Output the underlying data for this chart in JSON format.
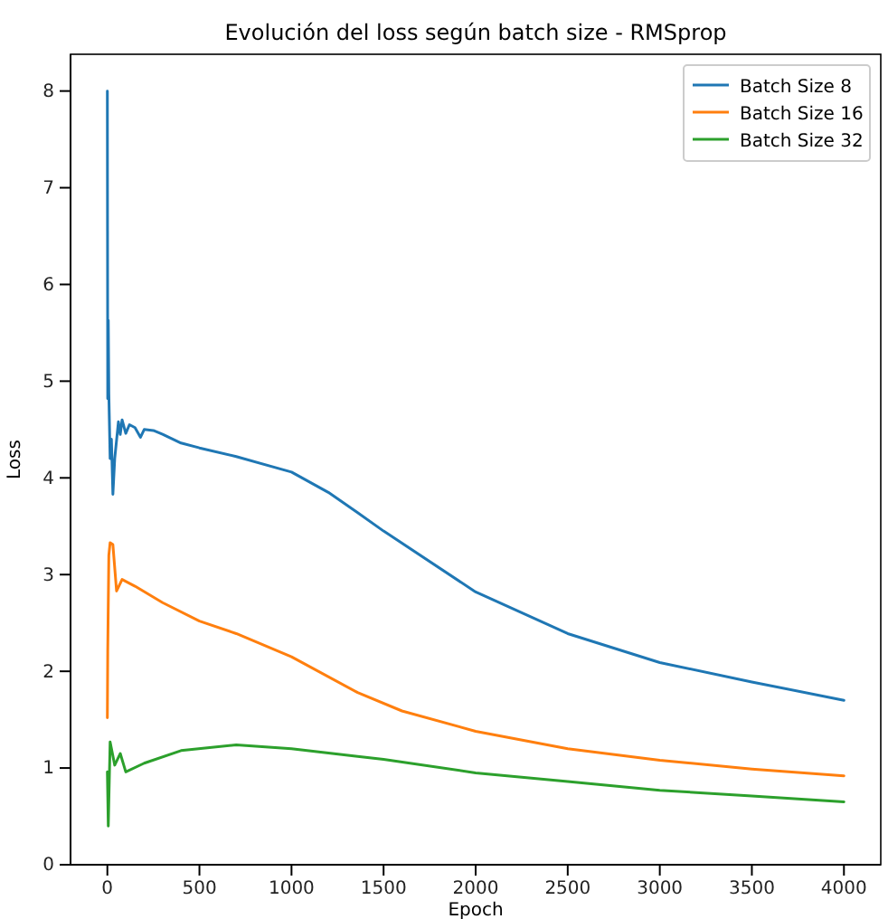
{
  "chart_data": {
    "type": "line",
    "title": "Evolución del loss según batch size - RMSprop",
    "xlabel": "Epoch",
    "ylabel": "Loss",
    "xlim": [
      -200,
      4200
    ],
    "xticks": [
      0,
      500,
      1000,
      1500,
      2000,
      2500,
      3000,
      3500,
      4000
    ],
    "ylim": [
      0,
      8.38
    ],
    "yticks": [
      0,
      1,
      2,
      3,
      4,
      5,
      6,
      7,
      8
    ],
    "grid": false,
    "legend": "top right",
    "marker": "none",
    "line_style": "solid",
    "series": [
      {
        "name": "Batch Size 8",
        "color": "#1f77b4",
        "x": [
          0,
          2,
          5,
          8,
          15,
          22,
          30,
          40,
          60,
          70,
          80,
          100,
          120,
          150,
          180,
          200,
          250,
          300,
          400,
          500,
          700,
          1000,
          1200,
          1359,
          1500,
          2000,
          2500,
          3000,
          3500,
          4000
        ],
        "values": [
          8.0,
          4.82,
          5.63,
          4.87,
          4.2,
          4.4,
          3.83,
          4.2,
          4.58,
          4.45,
          4.6,
          4.46,
          4.55,
          4.52,
          4.42,
          4.5,
          4.49,
          4.45,
          4.36,
          4.31,
          4.22,
          4.06,
          3.85,
          3.64,
          3.45,
          2.82,
          2.39,
          2.09,
          1.89,
          1.7
        ]
      },
      {
        "name": "Batch Size 16",
        "color": "#ff7f0e",
        "x": [
          0,
          2,
          8,
          15,
          30,
          50,
          80,
          150,
          300,
          500,
          700,
          1000,
          1359,
          1600,
          2000,
          2500,
          3000,
          3500,
          4000
        ],
        "values": [
          1.52,
          2.2,
          3.2,
          3.33,
          3.31,
          2.83,
          2.95,
          2.88,
          2.71,
          2.52,
          2.39,
          2.15,
          1.78,
          1.59,
          1.38,
          1.2,
          1.08,
          0.99,
          0.92
        ]
      },
      {
        "name": "Batch Size 32",
        "color": "#2ca02c",
        "x": [
          0,
          5,
          15,
          40,
          70,
          100,
          200,
          400,
          700,
          1000,
          1359,
          1500,
          2000,
          2500,
          3000,
          3500,
          4000
        ],
        "values": [
          0.96,
          0.4,
          1.27,
          1.03,
          1.15,
          0.96,
          1.05,
          1.18,
          1.24,
          1.2,
          1.12,
          1.09,
          0.95,
          0.86,
          0.77,
          0.71,
          0.65
        ]
      }
    ]
  }
}
